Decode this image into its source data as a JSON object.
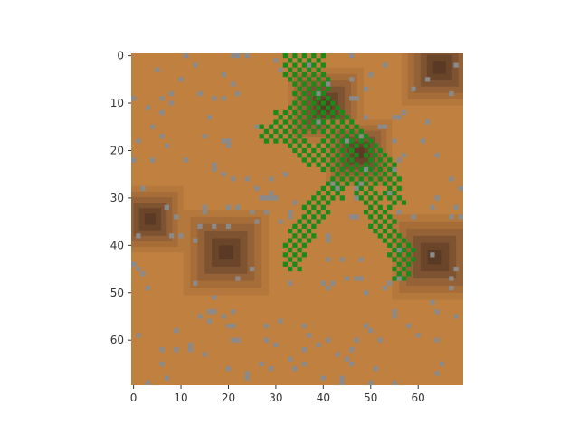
{
  "chart_data": {
    "type": "heatmap",
    "title": "",
    "xlabel": "",
    "ylabel": "",
    "xlim": [
      0,
      70
    ],
    "ylim": [
      70,
      0
    ],
    "grid": false,
    "y_axis_inverted": true,
    "x_ticks": [
      0,
      10,
      20,
      30,
      40,
      50,
      60
    ],
    "y_ticks": [
      0,
      10,
      20,
      30,
      40,
      50,
      60
    ],
    "x_tick_labels": [
      "0",
      "10",
      "20",
      "30",
      "40",
      "50",
      "60"
    ],
    "y_tick_labels": [
      "0",
      "10",
      "20",
      "30",
      "40",
      "50",
      "60"
    ],
    "colors": {
      "ground": "#c08040",
      "rock": "#8a8a8a",
      "vegetation": "#1b8a1b",
      "depression_levels": [
        "#b4773c",
        "#a66d38",
        "#946236",
        "#7e5332",
        "#6a452a",
        "#5a3a24"
      ],
      "axis": "#333333"
    },
    "depressions": [
      {
        "cx": 41,
        "cy": 11,
        "r": 8
      },
      {
        "cx": 48,
        "cy": 21,
        "r": 7
      },
      {
        "cx": 65,
        "cy": 3,
        "r": 8
      },
      {
        "cx": 4,
        "cy": 35,
        "r": 7
      },
      {
        "cx": 20,
        "cy": 42,
        "r": 9
      },
      {
        "cx": 64,
        "cy": 43,
        "r": 9
      }
    ],
    "vegetation_trails": [
      {
        "points": [
          [
            35,
            0
          ],
          [
            37,
            4
          ],
          [
            38,
            9
          ],
          [
            36,
            13
          ],
          [
            31,
            16
          ],
          [
            28,
            16
          ]
        ]
      },
      {
        "points": [
          [
            38,
            9
          ],
          [
            44,
            14
          ],
          [
            50,
            20
          ],
          [
            54,
            26
          ],
          [
            55,
            30
          ]
        ]
      },
      {
        "points": [
          [
            39,
            12
          ],
          [
            43,
            18
          ],
          [
            45,
            24
          ],
          [
            42,
            28
          ],
          [
            38,
            33
          ],
          [
            35,
            38
          ],
          [
            33,
            43
          ]
        ]
      },
      {
        "points": [
          [
            45,
            22
          ],
          [
            49,
            28
          ],
          [
            51,
            33
          ],
          [
            54,
            38
          ],
          [
            57,
            42
          ],
          [
            56,
            45
          ]
        ]
      },
      {
        "points": [
          [
            31,
            13
          ],
          [
            33,
            17
          ],
          [
            36,
            20
          ],
          [
            40,
            22
          ]
        ]
      }
    ],
    "rock_count": 230
  }
}
